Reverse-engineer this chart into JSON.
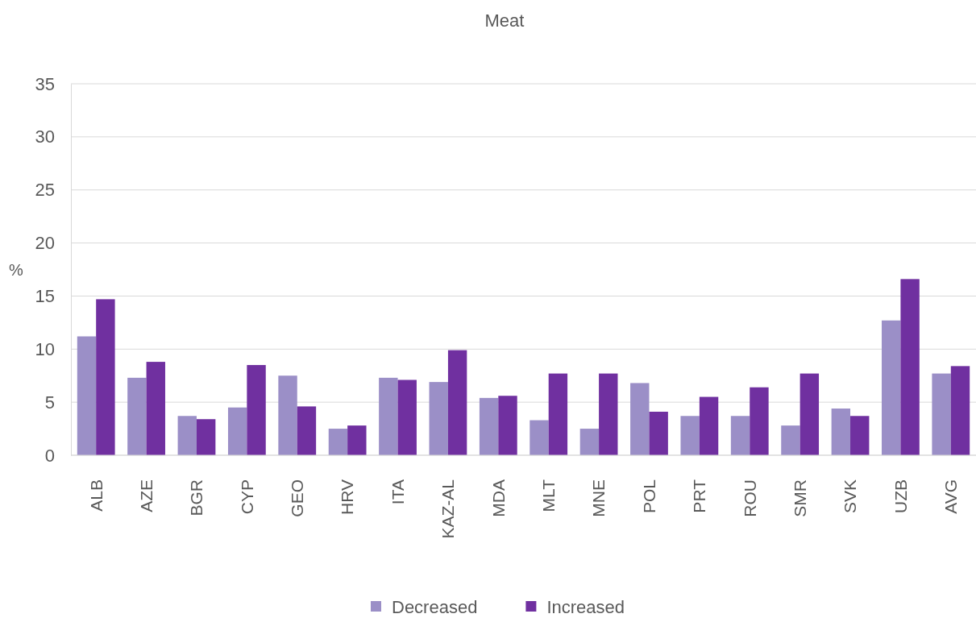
{
  "chart_data": {
    "type": "bar",
    "title": "Meat",
    "ylabel": "%",
    "categories": [
      "ALB",
      "AZE",
      "BGR",
      "CYP",
      "GEO",
      "HRV",
      "ITA",
      "KAZ-AL",
      "MDA",
      "MLT",
      "MNE",
      "POL",
      "PRT",
      "ROU",
      "SMR",
      "SVK",
      "UZB",
      "AVG"
    ],
    "series": [
      {
        "name": "Decreased",
        "color": "#9b8fc7",
        "values": [
          11.2,
          7.3,
          3.7,
          4.5,
          7.5,
          2.5,
          7.3,
          6.9,
          5.4,
          3.3,
          2.5,
          6.8,
          3.7,
          3.7,
          2.8,
          4.4,
          12.7,
          7.7
        ]
      },
      {
        "name": "Increased",
        "color": "#7030a0",
        "values": [
          14.7,
          8.8,
          3.4,
          8.5,
          4.6,
          2.8,
          7.1,
          9.9,
          5.6,
          7.7,
          7.7,
          4.1,
          5.5,
          6.4,
          7.7,
          3.7,
          16.6,
          8.4
        ]
      }
    ],
    "ylim": [
      0,
      35
    ],
    "yticks": [
      0,
      5,
      10,
      15,
      20,
      25,
      30,
      35
    ],
    "grid": "y",
    "legend": "bottom"
  }
}
